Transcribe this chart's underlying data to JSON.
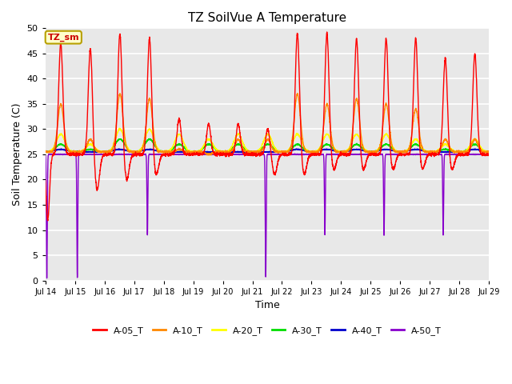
{
  "title": "TZ SoilVue A Temperature",
  "ylabel": "Soil Temperature (C)",
  "xlabel": "Time",
  "annotation_text": "TZ_sm",
  "annotation_color": "#cc0000",
  "annotation_bg": "#ffffcc",
  "annotation_border": "#b8a000",
  "ylim": [
    0,
    50
  ],
  "yticks": [
    0,
    5,
    10,
    15,
    20,
    25,
    30,
    35,
    40,
    45,
    50
  ],
  "xtick_labels": [
    "Jul 14",
    "Jul 15",
    "Jul 16",
    "Jul 17",
    "Jul 18",
    "Jul 19",
    "Jul 20",
    "Jul 21",
    "Jul 22",
    "Jul 23",
    "Jul 24",
    "Jul 25",
    "Jul 26",
    "Jul 27",
    "Jul 28",
    "Jul 29"
  ],
  "outer_bg": "#ffffff",
  "plot_bg": "#e8e8e8",
  "grid_color": "#ffffff",
  "series": [
    {
      "name": "A-05_T",
      "color": "#ff0000"
    },
    {
      "name": "A-10_T",
      "color": "#ff8800"
    },
    {
      "name": "A-20_T",
      "color": "#ffff00"
    },
    {
      "name": "A-30_T",
      "color": "#00dd00"
    },
    {
      "name": "A-40_T",
      "color": "#0000cc"
    },
    {
      "name": "A-50_T",
      "color": "#8800cc"
    }
  ]
}
